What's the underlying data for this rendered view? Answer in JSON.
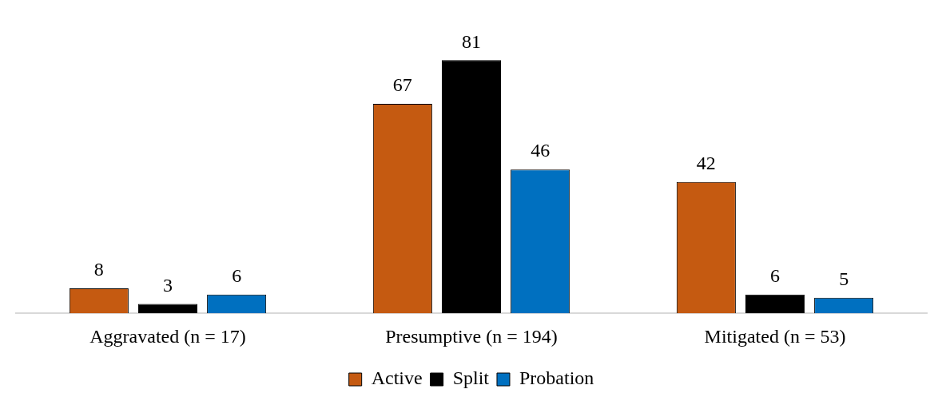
{
  "chart_data": {
    "type": "bar",
    "categories": [
      "Aggravated (n = 17)",
      "Presumptive (n = 194)",
      "Mitigated (n = 53)"
    ],
    "series": [
      {
        "name": "Active",
        "color": "#c55a11",
        "values": [
          8,
          67,
          42
        ]
      },
      {
        "name": "Split",
        "color": "#000000",
        "values": [
          3,
          81,
          6
        ]
      },
      {
        "name": "Probation",
        "color": "#0070c0",
        "values": [
          6,
          46,
          5
        ]
      }
    ],
    "data_labels": true,
    "legend": "bottom",
    "grid": false
  }
}
